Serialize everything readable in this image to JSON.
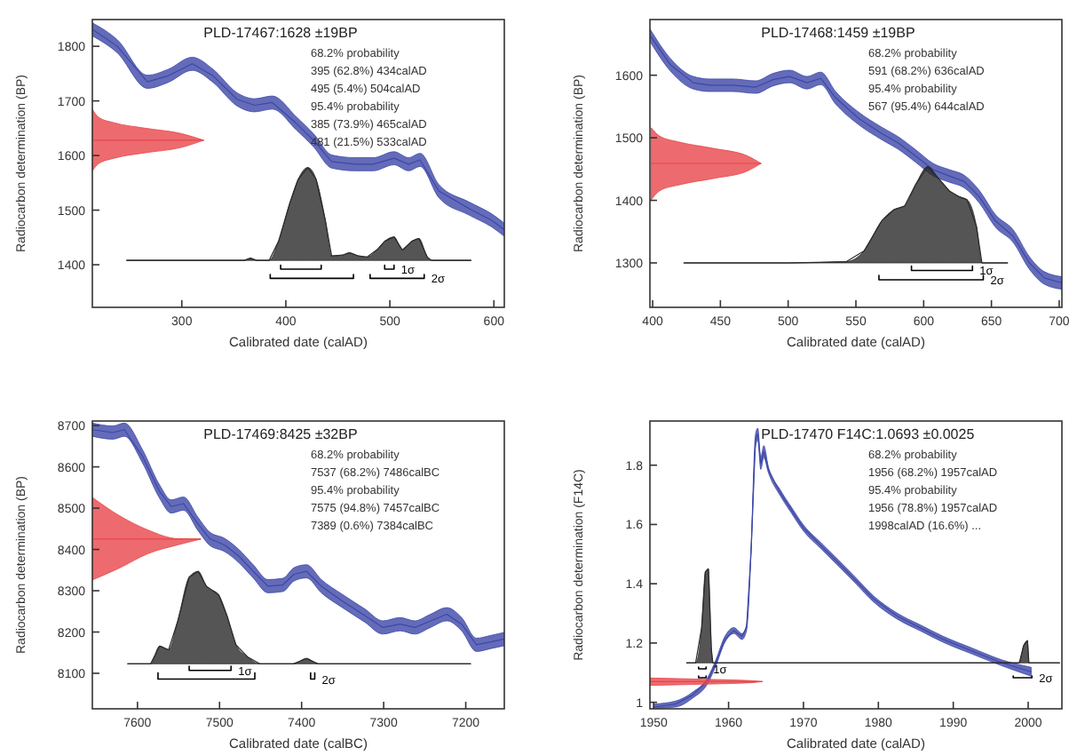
{
  "chart_data": [
    {
      "type": "line",
      "title": "PLD-17467:1628 ±19BP",
      "xlabel": "Calibrated date (calAD)",
      "ylabel": "Radiocarbon determination (BP)",
      "xlim": [
        214,
        610
      ],
      "ylim": [
        1322,
        1849
      ],
      "xticks": [
        300,
        400,
        500,
        600
      ],
      "yticks": [
        1400,
        1500,
        1600,
        1700,
        1800
      ],
      "marker": "none",
      "annotations": [
        "68.2% probability",
        "395 (62.8%) 434calAD",
        "495 (5.4%) 504calAD",
        "95.4% probability",
        "385 (73.9%) 465calAD",
        "481 (21.5%) 533calAD"
      ],
      "series": [
        {
          "color": "#3d47a8",
          "x": [
            214,
            238,
            267,
            287,
            310,
            330,
            353,
            370,
            387,
            410,
            427,
            444,
            467,
            484,
            504,
            518,
            529,
            547,
            576,
            598,
            610
          ],
          "values": [
            1831,
            1800,
            1735,
            1746,
            1768,
            1746,
            1703,
            1692,
            1697,
            1659,
            1627,
            1589,
            1584,
            1584,
            1595,
            1584,
            1592,
            1535,
            1503,
            1481,
            1464
          ],
          "lower": [
            1819,
            1788,
            1723,
            1734,
            1756,
            1734,
            1691,
            1680,
            1685,
            1647,
            1615,
            1577,
            1572,
            1572,
            1583,
            1572,
            1580,
            1523,
            1491,
            1469,
            1452
          ],
          "upper": [
            1843,
            1812,
            1747,
            1758,
            1780,
            1758,
            1715,
            1704,
            1709,
            1671,
            1639,
            1601,
            1596,
            1596,
            1607,
            1596,
            1604,
            1547,
            1515,
            1493,
            1476
          ]
        },
        {
          "color": "#2a2a2a",
          "x": [
            247,
            360,
            366,
            372,
            384,
            393,
            404,
            412,
            421,
            429,
            438,
            444,
            455,
            461,
            470,
            478,
            488,
            495,
            504,
            512,
            521,
            528,
            536,
            540,
            578
          ],
          "values": [
            1408,
            1408,
            1412,
            1408,
            1408,
            1443,
            1514,
            1557,
            1578,
            1557,
            1481,
            1416,
            1418,
            1422,
            1416,
            1414,
            1428,
            1443,
            1451,
            1427,
            1443,
            1448,
            1414,
            1408,
            1408
          ],
          "lower": [
            1408,
            1408,
            1408,
            1408,
            1408,
            1408,
            1408,
            1408,
            1408,
            1408,
            1408,
            1408,
            1408,
            1408,
            1408,
            1408,
            1408,
            1408,
            1408,
            1408,
            1408,
            1408,
            1408,
            1408,
            1408
          ],
          "upper": [
            1408,
            1408,
            1412,
            1408,
            1408,
            1443,
            1514,
            1557,
            1578,
            1557,
            1481,
            1416,
            1418,
            1422,
            1416,
            1414,
            1428,
            1443,
            1451,
            1427,
            1443,
            1448,
            1414,
            1408,
            1408
          ]
        },
        {
          "color": "#e8464a",
          "x": [
            214,
            220,
            235,
            265,
            300,
            321
          ],
          "values": [
            1628,
            1628,
            1628,
            1628,
            1628,
            1628
          ],
          "lower": [
            1572,
            1585,
            1595,
            1605,
            1615,
            1628
          ],
          "upper": [
            1685,
            1670,
            1660,
            1650,
            1640,
            1628
          ]
        },
        {
          "color": "#000000",
          "x": [
            395,
            395,
            434,
            434
          ],
          "values": [
            1399,
            1392,
            1392,
            1399
          ]
        },
        {
          "name": "1σ",
          "color": "#000000",
          "x": [
            495,
            495,
            504,
            504
          ],
          "values": [
            1399,
            1392,
            1392,
            1399
          ]
        },
        {
          "color": "#000000",
          "x": [
            385,
            385,
            465,
            465
          ],
          "values": [
            1382,
            1375,
            1375,
            1382
          ]
        },
        {
          "name": "2σ",
          "color": "#000000",
          "x": [
            481,
            481,
            533,
            533
          ],
          "values": [
            1382,
            1375,
            1375,
            1382
          ]
        }
      ]
    },
    {
      "type": "line",
      "title": "PLD-17468:1459 ±19BP",
      "xlabel": "Calibrated date (calAD)",
      "ylabel": "Radiocarbon determination (BP)",
      "xlim": [
        398,
        702
      ],
      "ylim": [
        1229,
        1689
      ],
      "xticks": [
        400,
        450,
        500,
        550,
        600,
        650,
        700
      ],
      "yticks": [
        1300,
        1400,
        1500,
        1600
      ],
      "marker": "none",
      "annotations": [
        "68.2% probability",
        "591 (68.2%) 636calAD",
        "95.4% probability",
        "567 (95.4%) 644calAD"
      ],
      "series": [
        {
          "color": "#3d47a8",
          "x": [
            398,
            413,
            430,
            442,
            459,
            476,
            489,
            501,
            514,
            524,
            535,
            552,
            569,
            581,
            594,
            607,
            619,
            630,
            641,
            653,
            666,
            678,
            689,
            702
          ],
          "values": [
            1664,
            1617,
            1588,
            1584,
            1584,
            1581,
            1593,
            1598,
            1588,
            1595,
            1564,
            1531,
            1507,
            1492,
            1471,
            1449,
            1439,
            1430,
            1406,
            1367,
            1343,
            1300,
            1276,
            1268
          ],
          "lower": [
            1654,
            1607,
            1578,
            1574,
            1574,
            1571,
            1583,
            1588,
            1578,
            1585,
            1554,
            1521,
            1497,
            1482,
            1461,
            1439,
            1429,
            1420,
            1396,
            1357,
            1333,
            1290,
            1266,
            1258
          ],
          "upper": [
            1674,
            1627,
            1598,
            1594,
            1594,
            1591,
            1603,
            1608,
            1598,
            1605,
            1574,
            1541,
            1517,
            1502,
            1481,
            1459,
            1449,
            1440,
            1416,
            1377,
            1353,
            1310,
            1286,
            1278
          ]
        },
        {
          "color": "#2a2a2a",
          "x": [
            423,
            500,
            543,
            556,
            569,
            578,
            586,
            594,
            603,
            611,
            619,
            626,
            632,
            639,
            643,
            662
          ],
          "values": [
            1300,
            1300,
            1302,
            1319,
            1367,
            1385,
            1391,
            1425,
            1454,
            1435,
            1415,
            1406,
            1401,
            1358,
            1300,
            1300
          ],
          "lower": [
            1300,
            1300,
            1300,
            1300,
            1300,
            1300,
            1300,
            1300,
            1300,
            1300,
            1300,
            1300,
            1300,
            1300,
            1300,
            1300
          ],
          "upper": [
            1300,
            1300,
            1302,
            1319,
            1367,
            1385,
            1391,
            1425,
            1454,
            1435,
            1415,
            1406,
            1401,
            1358,
            1300,
            1300
          ]
        },
        {
          "color": "#e8464a",
          "x": [
            399,
            405,
            420,
            445,
            470,
            480
          ],
          "values": [
            1459,
            1459,
            1459,
            1459,
            1459,
            1459
          ],
          "lower": [
            1401,
            1415,
            1425,
            1435,
            1447,
            1459
          ],
          "upper": [
            1516,
            1503,
            1493,
            1483,
            1471,
            1459
          ]
        },
        {
          "name": "1σ",
          "color": "#000000",
          "x": [
            591,
            591,
            636,
            636
          ],
          "values": [
            1295,
            1288,
            1288,
            1295
          ]
        },
        {
          "name": "2σ",
          "color": "#000000",
          "x": [
            567,
            567,
            644,
            644
          ],
          "values": [
            1280,
            1273,
            1273,
            1280
          ]
        }
      ]
    },
    {
      "type": "line",
      "title": "PLD-17469:8425 ±32BP",
      "xlabel": "Calibrated date (calBC)",
      "ylabel": "Radiocarbon determination (BP)",
      "xlim": [
        7655,
        7153
      ],
      "ylim": [
        8014,
        8711
      ],
      "xticks": [
        7600,
        7500,
        7400,
        7300,
        7200
      ],
      "yticks": [
        8100,
        8200,
        8300,
        8400,
        8500,
        8600,
        8700
      ],
      "marker": "none",
      "annotations": [
        "68.2% probability",
        "7537 (68.2%) 7486calBC",
        "95.4% probability",
        "7575 (94.8%) 7457calBC",
        "7389 (0.6%) 7384calBC"
      ],
      "series": [
        {
          "color": "#3d47a8",
          "x": [
            7655,
            7630,
            7616,
            7594,
            7573,
            7559,
            7544,
            7526,
            7512,
            7494,
            7476,
            7459,
            7441,
            7423,
            7409,
            7394,
            7376,
            7351,
            7323,
            7301,
            7280,
            7262,
            7244,
            7223,
            7205,
            7187,
            7169,
            7153
          ],
          "values": [
            8690,
            8683,
            8690,
            8626,
            8540,
            8504,
            8511,
            8461,
            8426,
            8411,
            8383,
            8347,
            8311,
            8314,
            8340,
            8347,
            8311,
            8276,
            8240,
            8211,
            8219,
            8211,
            8226,
            8243,
            8219,
            8169,
            8176,
            8183
          ],
          "lower": [
            8674,
            8667,
            8674,
            8610,
            8524,
            8488,
            8495,
            8445,
            8410,
            8395,
            8367,
            8331,
            8295,
            8298,
            8324,
            8331,
            8295,
            8260,
            8224,
            8195,
            8203,
            8195,
            8210,
            8227,
            8203,
            8153,
            8160,
            8167
          ],
          "upper": [
            8706,
            8699,
            8706,
            8642,
            8556,
            8520,
            8527,
            8477,
            8442,
            8427,
            8399,
            8363,
            8327,
            8330,
            8356,
            8363,
            8327,
            8292,
            8256,
            8227,
            8235,
            8227,
            8242,
            8259,
            8235,
            8185,
            8192,
            8199
          ]
        },
        {
          "color": "#2a2a2a",
          "x": [
            7612,
            7584,
            7573,
            7562,
            7551,
            7537,
            7526,
            7516,
            7501,
            7491,
            7480,
            7466,
            7451,
            7410,
            7394,
            7380,
            7194
          ],
          "values": [
            8123,
            8123,
            8166,
            8157,
            8226,
            8333,
            8347,
            8311,
            8290,
            8240,
            8169,
            8140,
            8123,
            8123,
            8136,
            8123,
            8123
          ],
          "lower": [
            8123,
            8123,
            8123,
            8123,
            8123,
            8123,
            8123,
            8123,
            8123,
            8123,
            8123,
            8123,
            8123,
            8123,
            8123,
            8123,
            8123
          ],
          "upper": [
            8123,
            8123,
            8166,
            8157,
            8226,
            8333,
            8347,
            8311,
            8290,
            8240,
            8169,
            8140,
            8123,
            8123,
            8136,
            8123,
            8123
          ]
        },
        {
          "color": "#e8464a",
          "x": [
            7655,
            7623,
            7587,
            7551,
            7523
          ],
          "values": [
            8425,
            8425,
            8425,
            8425,
            8425
          ],
          "lower": [
            8326,
            8354,
            8390,
            8411,
            8425
          ],
          "upper": [
            8526,
            8483,
            8447,
            8426,
            8425
          ]
        },
        {
          "name": "1σ",
          "color": "#000000",
          "x": [
            7537,
            7537,
            7486,
            7486
          ],
          "values": [
            8117,
            8107,
            8107,
            8117
          ]
        },
        {
          "color": "#000000",
          "x": [
            7575,
            7575,
            7457,
            7457
          ],
          "values": [
            8101,
            8086,
            8086,
            8101
          ]
        },
        {
          "name": "2σ",
          "color": "#000000",
          "x": [
            7389,
            7389,
            7384,
            7384
          ],
          "values": [
            8101,
            8086,
            8086,
            8101
          ]
        }
      ]
    },
    {
      "type": "line",
      "title": "PLD-17470 F14C:1.0693 ±0.0025",
      "xlabel": "Calibrated date (calAD)",
      "ylabel": "Radiocarbon determination (F14C)",
      "xlim": [
        1949.5,
        2004.5
      ],
      "ylim": [
        0.978,
        1.949
      ],
      "xticks": [
        1950,
        1960,
        1970,
        1980,
        1990,
        2000
      ],
      "yticks": [
        1,
        1.2,
        1.4,
        1.6,
        1.8
      ],
      "marker": "none",
      "annotations": [
        "68.2% probability",
        "1956 (68.2%) 1957calAD",
        "95.4% probability",
        "1956 (78.8%) 1957calAD",
        "1998calAD (16.6%) ..."
      ],
      "series": [
        {
          "color": "#3d47a8",
          "x": [
            1950,
            1952.9,
            1955.2,
            1957.2,
            1958.3,
            1959.5,
            1960.7,
            1961.8,
            1962.4,
            1963,
            1963.6,
            1963.9,
            1964.3,
            1964.7,
            1965.3,
            1966.9,
            1968.4,
            1970,
            1972.3,
            1974.7,
            1977,
            1979.3,
            1982.5,
            1985.6,
            1988.7,
            1992.6,
            1996.5,
            2000.4
          ],
          "values": [
            0.984,
            0.994,
            1.024,
            1.073,
            1.133,
            1.212,
            1.242,
            1.222,
            1.252,
            1.509,
            1.885,
            1.905,
            1.806,
            1.846,
            1.786,
            1.707,
            1.648,
            1.588,
            1.529,
            1.469,
            1.41,
            1.35,
            1.291,
            1.251,
            1.212,
            1.172,
            1.133,
            1.103
          ],
          "lower": [
            0.98,
            0.984,
            1.014,
            1.063,
            1.123,
            1.202,
            1.232,
            1.212,
            1.242,
            1.499,
            1.865,
            1.885,
            1.786,
            1.826,
            1.776,
            1.697,
            1.638,
            1.578,
            1.519,
            1.459,
            1.4,
            1.34,
            1.281,
            1.241,
            1.202,
            1.162,
            1.123,
            1.088
          ],
          "upper": [
            0.994,
            1.004,
            1.034,
            1.083,
            1.143,
            1.222,
            1.252,
            1.232,
            1.262,
            1.519,
            1.905,
            1.925,
            1.826,
            1.866,
            1.796,
            1.717,
            1.658,
            1.598,
            1.539,
            1.479,
            1.42,
            1.36,
            1.301,
            1.261,
            1.222,
            1.182,
            1.143,
            1.118
          ]
        },
        {
          "color": "#2a2a2a",
          "x": [
            1954.4,
            1955.6,
            1956.4,
            1956.9,
            1957.3,
            1957.7,
            1957.9,
            1998.8,
            1999.4,
            1999.9,
            2000.1,
            2004.2
          ],
          "values": [
            1.133,
            1.133,
            1.251,
            1.44,
            1.45,
            1.18,
            1.133,
            1.133,
            1.192,
            1.208,
            1.133,
            1.133
          ],
          "lower": [
            1.133,
            1.133,
            1.133,
            1.133,
            1.133,
            1.133,
            1.133,
            1.133,
            1.133,
            1.133,
            1.133,
            1.133
          ],
          "upper": [
            1.133,
            1.133,
            1.251,
            1.44,
            1.45,
            1.18,
            1.133,
            1.133,
            1.192,
            1.208,
            1.133,
            1.133
          ]
        },
        {
          "color": "#e8464a",
          "x": [
            1949.5,
            1958,
            1963,
            1964.5
          ],
          "values": [
            1.07,
            1.07,
            1.07,
            1.07
          ],
          "lower": [
            1.057,
            1.062,
            1.066,
            1.07
          ],
          "upper": [
            1.082,
            1.077,
            1.073,
            1.07
          ]
        },
        {
          "name": "1σ",
          "color": "#000000",
          "x": [
            1956,
            1956,
            1957,
            1957
          ],
          "values": [
            1.119,
            1.113,
            1.113,
            1.119
          ]
        },
        {
          "color": "#000000",
          "x": [
            1956,
            1956,
            1957,
            1957
          ],
          "values": [
            1.089,
            1.083,
            1.083,
            1.089
          ]
        },
        {
          "name": "2σ",
          "color": "#000000",
          "x": [
            1998,
            1998,
            2000.5,
            2000.5
          ],
          "values": [
            1.089,
            1.083,
            1.083,
            1.089
          ]
        }
      ]
    }
  ]
}
